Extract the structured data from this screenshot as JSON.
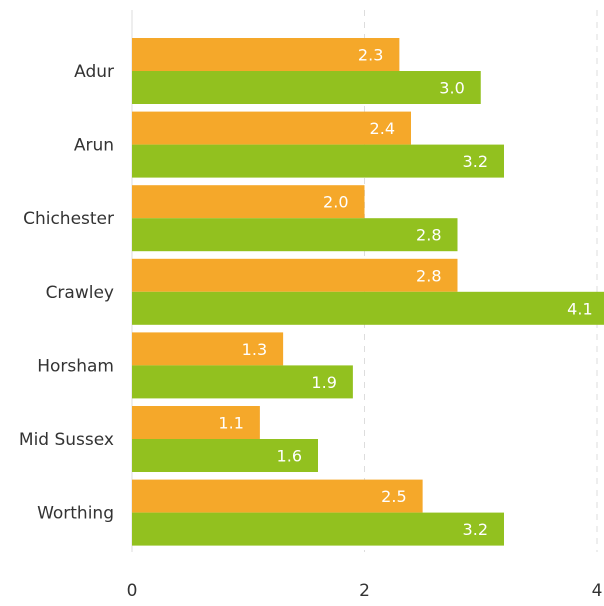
{
  "chart_data": {
    "type": "bar",
    "orientation": "horizontal",
    "title": "",
    "xlabel": "",
    "ylabel": "",
    "categories": [
      "Adur",
      "Arun",
      "Chichester",
      "Crawley",
      "Horsham",
      "Mid Sussex",
      "Worthing"
    ],
    "series": [
      {
        "color": "#f5a82a",
        "values": [
          2.3,
          2.4,
          2.0,
          2.8,
          1.3,
          1.1,
          2.5
        ]
      },
      {
        "color": "#92c11f",
        "values": [
          3.0,
          3.2,
          2.8,
          4.1,
          1.9,
          1.6,
          3.2
        ]
      }
    ],
    "xlim": [
      0,
      4
    ],
    "xticks": [
      0,
      2,
      4
    ],
    "grid": true,
    "data_labels": true,
    "legend": "none"
  }
}
